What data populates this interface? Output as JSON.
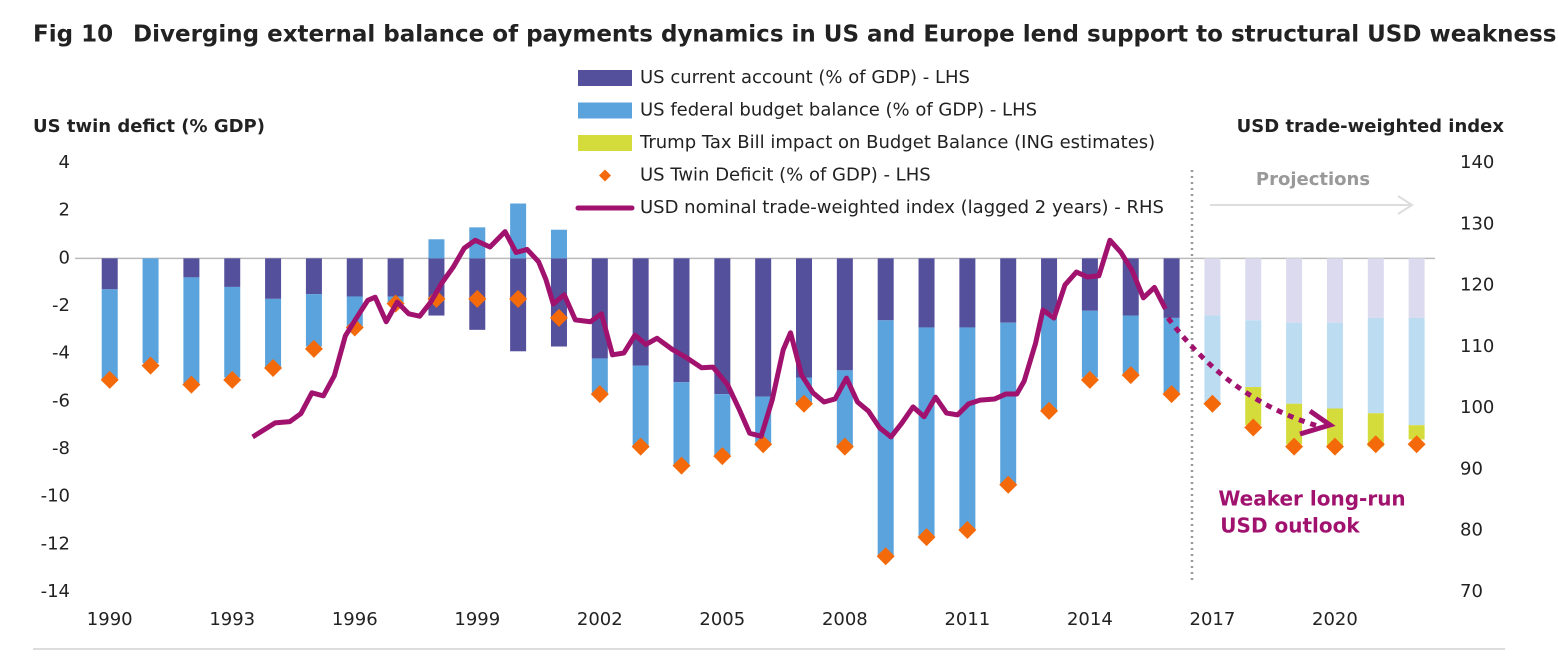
{
  "chart_data": {
    "type": "bar",
    "fig_label": "Fig 10",
    "title": "Diverging external balance of payments dynamics in US and Europe lend support to structural USD weakness",
    "y_axis_label": "US twin defict (% GDP)",
    "y2_axis_label": "USD trade-weighted index",
    "annotations": {
      "projections": "Projections",
      "outlook": [
        "Weaker long-run",
        "USD outlook"
      ]
    },
    "x": [
      1990,
      1991,
      1992,
      1993,
      1994,
      1995,
      1996,
      1997,
      1998,
      1999,
      2000,
      2001,
      2002,
      2003,
      2004,
      2005,
      2006,
      2007,
      2008,
      2009,
      2010,
      2011,
      2012,
      2013,
      2014,
      2015,
      2016,
      2017,
      2018,
      2019,
      2020,
      2021,
      2022
    ],
    "xlim": [
      1989.15,
      2022.45
    ],
    "xticks": [
      1990,
      1993,
      1996,
      1999,
      2002,
      2005,
      2008,
      2011,
      2014,
      2017,
      2020
    ],
    "projection_start": 2016.5,
    "ylim": [
      -14,
      4
    ],
    "yticks": [
      -14,
      -12,
      -10,
      -8,
      -6,
      -4,
      -2,
      0,
      2,
      4
    ],
    "y2lim": [
      70,
      140
    ],
    "y2ticks": [
      70,
      80,
      90,
      100,
      110,
      120,
      130,
      140
    ],
    "series": [
      {
        "name": "US current account (% of GDP) - LHS",
        "type": "bar",
        "color": "#55509c",
        "projection_color": "#dcdaee",
        "values": [
          -1.3,
          0,
          -0.8,
          -1.2,
          -1.7,
          -1.5,
          -1.6,
          -1.6,
          -2.4,
          -3.0,
          -3.9,
          -3.7,
          -4.2,
          -4.5,
          -5.2,
          -5.7,
          -5.8,
          -5.0,
          -4.7,
          -2.6,
          -2.9,
          -2.9,
          -2.7,
          -2.3,
          -2.2,
          -2.4,
          -2.5,
          -2.4,
          -2.6,
          -2.7,
          -2.7,
          -2.5,
          -2.5
        ]
      },
      {
        "name": "US federal budget balance (% of GDP) - LHS",
        "type": "bar",
        "color": "#5ba3dc",
        "projection_color": "#bcdcf2",
        "values": [
          -3.8,
          -4.4,
          -4.5,
          -3.8,
          -2.9,
          -2.2,
          -1.3,
          -0.3,
          0.8,
          1.3,
          2.3,
          1.2,
          -1.5,
          -3.4,
          -3.5,
          -2.6,
          -2.0,
          -1.1,
          -3.2,
          -9.9,
          -8.8,
          -8.5,
          -6.8,
          -4.1,
          -2.8,
          -2.5,
          -3.2,
          -3.7,
          -2.8,
          -3.4,
          -3.6,
          -4.0,
          -4.5
        ]
      },
      {
        "name": "Trump Tax Bill impact on Budget Balance (ING estimates)",
        "type": "bar",
        "color": "#d4dc3c",
        "projection_color": "#d4dc3c",
        "values": [
          null,
          null,
          null,
          null,
          null,
          null,
          null,
          null,
          null,
          null,
          null,
          null,
          null,
          null,
          null,
          null,
          null,
          null,
          null,
          null,
          null,
          null,
          null,
          null,
          null,
          null,
          null,
          null,
          -1.6,
          -1.7,
          -1.6,
          -1.4,
          -0.6
        ]
      },
      {
        "name": "US Twin Deficit (% of GDP) - LHS",
        "type": "scatter",
        "color": "#f46a0a",
        "values": [
          -5.1,
          -4.5,
          -5.3,
          -5.1,
          -4.6,
          -3.8,
          -2.9,
          -1.9,
          -1.7,
          -1.7,
          -1.7,
          -2.5,
          -5.7,
          -7.9,
          -8.7,
          -8.3,
          -7.8,
          -6.1,
          -7.9,
          -12.5,
          -11.7,
          -11.4,
          -9.5,
          -6.4,
          -5.1,
          -4.9,
          -5.7,
          -6.1,
          -7.1,
          -7.9,
          -7.9,
          -7.8,
          -7.8
        ]
      },
      {
        "name": "USD nominal trade-weighted index (lagged 2 years) - RHS",
        "type": "line",
        "color": "#a0126e",
        "axis": "y2",
        "x": [
          1993.5,
          1994.05,
          1994.41,
          1994.68,
          1994.95,
          1995.23,
          1995.5,
          1995.77,
          1996.04,
          1996.32,
          1996.5,
          1996.77,
          1997.04,
          1997.32,
          1997.59,
          1997.86,
          1998.13,
          1998.41,
          1998.68,
          1998.95,
          1999.31,
          1999.68,
          1999.95,
          2000.22,
          2000.5,
          2000.68,
          2000.86,
          2001.13,
          2001.4,
          2001.77,
          2002.04,
          2002.31,
          2002.59,
          2002.86,
          2003.13,
          2003.4,
          2003.77,
          2004.13,
          2004.49,
          2004.77,
          2005.13,
          2005.4,
          2005.67,
          2005.95,
          2006.22,
          2006.49,
          2006.67,
          2006.94,
          2007.22,
          2007.49,
          2007.76,
          2008.04,
          2008.31,
          2008.58,
          2008.85,
          2009.13,
          2009.4,
          2009.67,
          2009.94,
          2010.22,
          2010.49,
          2010.76,
          2011.03,
          2011.31,
          2011.67,
          2011.94,
          2012.21,
          2012.39,
          2012.67,
          2012.85,
          2013.12,
          2013.39,
          2013.67,
          2013.94,
          2014.22,
          2014.49,
          2014.76,
          2015.03,
          2015.31,
          2015.58,
          2015.85
        ],
        "values": [
          95.3,
          97.6,
          97.8,
          99.1,
          102.5,
          102,
          105.3,
          111.8,
          114.7,
          117.6,
          118.1,
          114.1,
          117.3,
          115.4,
          115,
          117.3,
          120.4,
          123,
          126.1,
          127.4,
          126.3,
          128.8,
          125.4,
          125.9,
          123.9,
          121,
          117,
          118.5,
          114.4,
          114.1,
          115.4,
          108.7,
          109,
          111.9,
          110.4,
          111.4,
          109.6,
          108.2,
          106.6,
          106.7,
          103.8,
          100,
          95.9,
          95.4,
          101.3,
          109.5,
          112.3,
          105.4,
          102.5,
          101,
          101.5,
          104.9,
          101,
          99.5,
          96.8,
          95.3,
          97.6,
          100.2,
          98.6,
          101.8,
          99.2,
          98.9,
          100.7,
          101.3,
          101.5,
          102.3,
          102.3,
          104.4,
          110.6,
          116,
          114.7,
          120.1,
          122.2,
          121.4,
          121.6,
          127.4,
          125.4,
          122.5,
          118,
          119.7,
          116.2
        ]
      }
    ]
  }
}
